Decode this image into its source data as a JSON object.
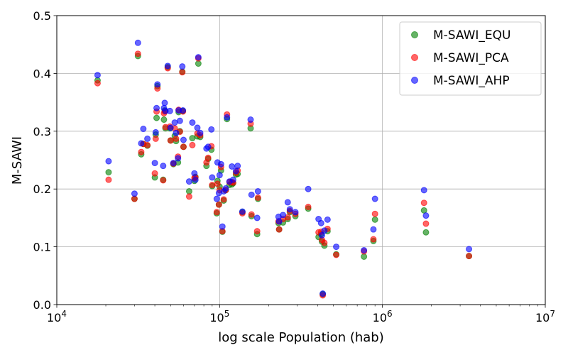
{
  "chart_data": {
    "type": "scatter",
    "xlabel": "log scale Population (hab)",
    "ylabel": "M-SAWI",
    "xscale": "log",
    "xlim": [
      10000,
      10000000
    ],
    "ylim": [
      0,
      0.5
    ],
    "x_ticks": [
      10000,
      100000,
      1000000,
      10000000
    ],
    "x_tick_labels": [
      {
        "base": "10",
        "exp": "4"
      },
      {
        "base": "10",
        "exp": "5"
      },
      {
        "base": "10",
        "exp": "6"
      },
      {
        "base": "10",
        "exp": "7"
      }
    ],
    "y_ticks": [
      0.0,
      0.1,
      0.2,
      0.3,
      0.4,
      0.5
    ],
    "y_tick_labels": [
      "0.0",
      "0.1",
      "0.2",
      "0.3",
      "0.4",
      "0.5"
    ],
    "grid": true,
    "legend_position": "top-right",
    "x": [
      17800,
      20800,
      30000,
      31500,
      33000,
      34000,
      36000,
      40000,
      40500,
      41000,
      41500,
      45000,
      45500,
      46000,
      46500,
      48000,
      49500,
      50000,
      52000,
      53000,
      54000,
      55500,
      56000,
      57000,
      59000,
      59500,
      60000,
      65000,
      68000,
      70000,
      71000,
      73000,
      74000,
      76000,
      83000,
      85000,
      89000,
      90000,
      96000,
      97000,
      99000,
      100000,
      102000,
      104000,
      106000,
      109000,
      111000,
      115000,
      119000,
      121000,
      126000,
      129000,
      138000,
      155000,
      157000,
      170000,
      172000,
      230000,
      232000,
      245000,
      262000,
      270000,
      292000,
      350000,
      405000,
      420000,
      425000,
      430000,
      440000,
      460000,
      520000,
      770000,
      880000,
      900000,
      1800000,
      1850000,
      3400000
    ],
    "series": [
      {
        "name": "M-SAWI_EQU",
        "color": "#008000",
        "values": [
          0.388,
          0.229,
          0.183,
          0.43,
          0.26,
          0.278,
          0.275,
          0.22,
          0.294,
          0.323,
          0.378,
          0.216,
          0.32,
          0.336,
          0.305,
          0.411,
          0.305,
          0.284,
          0.243,
          0.292,
          0.283,
          0.246,
          0.333,
          0.3,
          0.403,
          0.335,
          0.273,
          0.196,
          0.288,
          0.214,
          0.221,
          0.291,
          0.417,
          0.29,
          0.24,
          0.252,
          0.268,
          0.205,
          0.158,
          0.214,
          0.173,
          0.204,
          0.232,
          0.126,
          0.18,
          0.198,
          0.321,
          0.207,
          0.208,
          0.21,
          0.225,
          0.226,
          0.16,
          0.305,
          0.153,
          0.122,
          0.183,
          0.141,
          0.13,
          0.142,
          0.148,
          0.16,
          0.153,
          0.166,
          0.117,
          0.122,
          0.109,
          0.018,
          0.102,
          0.127,
          0.087,
          0.083,
          0.11,
          0.147,
          0.163,
          0.125,
          0.084
        ]
      },
      {
        "name": "M-SAWI_PCA",
        "color": "#ff0000",
        "values": [
          0.383,
          0.216,
          0.183,
          0.434,
          0.264,
          0.278,
          0.276,
          0.227,
          0.287,
          0.334,
          0.374,
          0.215,
          0.331,
          0.334,
          0.307,
          0.409,
          0.308,
          0.284,
          0.244,
          0.305,
          0.287,
          0.256,
          0.337,
          0.299,
          0.402,
          0.334,
          0.273,
          0.187,
          0.276,
          0.219,
          0.22,
          0.296,
          0.426,
          0.293,
          0.246,
          0.254,
          0.274,
          0.207,
          0.16,
          0.209,
          0.173,
          0.198,
          0.238,
          0.127,
          0.182,
          0.198,
          0.329,
          0.212,
          0.212,
          0.211,
          0.228,
          0.232,
          0.158,
          0.313,
          0.156,
          0.127,
          0.185,
          0.144,
          0.13,
          0.148,
          0.151,
          0.162,
          0.157,
          0.169,
          0.125,
          0.126,
          0.112,
          0.016,
          0.107,
          0.131,
          0.086,
          0.092,
          0.113,
          0.157,
          0.176,
          0.14,
          0.084
        ]
      },
      {
        "name": "M-SAWI_AHP",
        "color": "#0000ff",
        "values": [
          0.397,
          0.248,
          0.192,
          0.453,
          0.279,
          0.304,
          0.287,
          0.245,
          0.298,
          0.34,
          0.381,
          0.24,
          0.34,
          0.349,
          0.335,
          0.413,
          0.335,
          0.306,
          0.245,
          0.315,
          0.297,
          0.253,
          0.336,
          0.318,
          0.412,
          0.336,
          0.285,
          0.213,
          0.315,
          0.227,
          0.216,
          0.306,
          0.428,
          0.297,
          0.27,
          0.273,
          0.303,
          0.22,
          0.183,
          0.246,
          0.193,
          0.224,
          0.243,
          0.135,
          0.196,
          0.201,
          0.324,
          0.213,
          0.239,
          0.216,
          0.231,
          0.24,
          0.161,
          0.32,
          0.19,
          0.15,
          0.196,
          0.152,
          0.144,
          0.155,
          0.177,
          0.165,
          0.16,
          0.2,
          0.148,
          0.141,
          0.12,
          0.019,
          0.128,
          0.147,
          0.1,
          0.094,
          0.13,
          0.183,
          0.198,
          0.154,
          0.096
        ]
      }
    ]
  }
}
